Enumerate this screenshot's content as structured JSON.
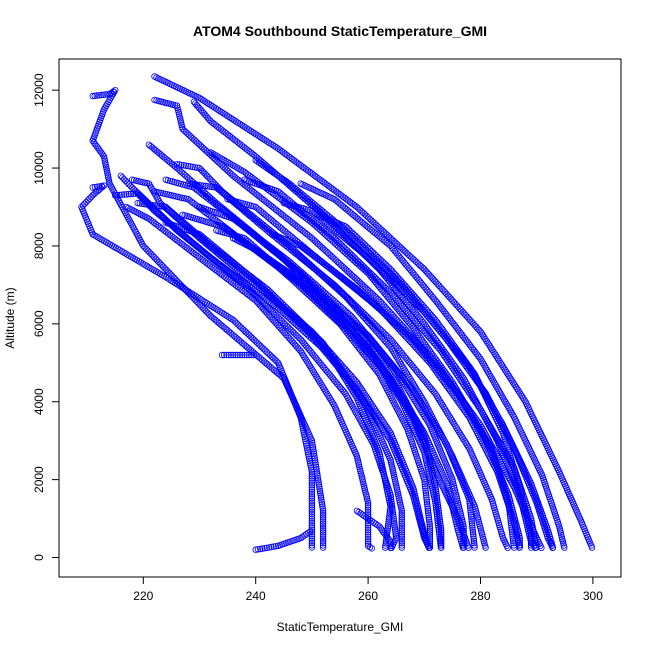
{
  "chart_data": {
    "type": "scatter",
    "title": "ATOM4 Southbound StaticTemperature_GMI",
    "xlabel": "StaticTemperature_GMI",
    "ylabel": "Altitude (m)",
    "xlim": [
      205,
      305
    ],
    "ylim": [
      -500,
      12800
    ],
    "xticks": [
      220,
      240,
      260,
      280,
      300
    ],
    "yticks": [
      0,
      2000,
      4000,
      6000,
      8000,
      10000,
      12000
    ],
    "grid": false,
    "legend": "none",
    "marker": "open-circle",
    "color": "#0000ff",
    "profiles": [
      [
        [
          211,
          11850
        ],
        [
          214,
          11900
        ],
        [
          215,
          12000
        ],
        [
          213,
          11500
        ],
        [
          211,
          10700
        ],
        [
          213,
          10300
        ],
        [
          214,
          9600
        ],
        [
          220,
          8000
        ],
        [
          232,
          6200
        ],
        [
          245,
          4600
        ],
        [
          250,
          3000
        ],
        [
          252,
          1200
        ],
        [
          252,
          200
        ]
      ],
      [
        [
          211,
          9500
        ],
        [
          213,
          9550
        ],
        [
          211,
          9300
        ],
        [
          209,
          9000
        ],
        [
          211,
          8300
        ],
        [
          224,
          7200
        ],
        [
          236,
          6100
        ],
        [
          244,
          5000
        ],
        [
          248,
          3600
        ],
        [
          250,
          2200
        ],
        [
          250,
          1000
        ],
        [
          250,
          200
        ]
      ],
      [
        [
          222,
          12350
        ],
        [
          230,
          11800
        ],
        [
          244,
          10500
        ],
        [
          258,
          9000
        ],
        [
          270,
          7400
        ],
        [
          280,
          5800
        ],
        [
          288,
          4000
        ],
        [
          294,
          2200
        ],
        [
          298,
          900
        ],
        [
          300,
          200
        ]
      ],
      [
        [
          222,
          11750
        ],
        [
          226,
          11600
        ],
        [
          227,
          11000
        ],
        [
          236,
          9800
        ],
        [
          250,
          8200
        ],
        [
          262,
          6600
        ],
        [
          272,
          5000
        ],
        [
          280,
          3400
        ],
        [
          286,
          1800
        ],
        [
          290,
          500
        ],
        [
          291,
          200
        ]
      ],
      [
        [
          229,
          11700
        ],
        [
          232,
          11200
        ],
        [
          240,
          10300
        ],
        [
          252,
          8800
        ],
        [
          262,
          7400
        ],
        [
          270,
          6000
        ],
        [
          277,
          4600
        ],
        [
          283,
          3000
        ],
        [
          287,
          1600
        ],
        [
          289,
          400
        ],
        [
          290,
          200
        ]
      ],
      [
        [
          221,
          10600
        ],
        [
          226,
          10000
        ],
        [
          233,
          9100
        ],
        [
          244,
          7800
        ],
        [
          254,
          6400
        ],
        [
          262,
          5000
        ],
        [
          268,
          3600
        ],
        [
          272,
          2200
        ],
        [
          276,
          1000
        ],
        [
          278,
          200
        ]
      ],
      [
        [
          218,
          9700
        ],
        [
          221,
          9600
        ],
        [
          223,
          9100
        ],
        [
          230,
          8200
        ],
        [
          240,
          7000
        ],
        [
          250,
          5800
        ],
        [
          258,
          4500
        ],
        [
          264,
          3200
        ],
        [
          268,
          1800
        ],
        [
          270,
          600
        ],
        [
          271,
          200
        ]
      ],
      [
        [
          215,
          9300
        ],
        [
          219,
          9350
        ],
        [
          222,
          8900
        ],
        [
          232,
          7700
        ],
        [
          244,
          6400
        ],
        [
          254,
          5100
        ],
        [
          260,
          3800
        ],
        [
          264,
          2500
        ],
        [
          266,
          1200
        ],
        [
          266,
          200
        ]
      ],
      [
        [
          226,
          10100
        ],
        [
          230,
          10000
        ],
        [
          234,
          9400
        ],
        [
          246,
          8000
        ],
        [
          256,
          6700
        ],
        [
          264,
          5400
        ],
        [
          270,
          4000
        ],
        [
          275,
          2600
        ],
        [
          279,
          1300
        ],
        [
          281,
          200
        ]
      ],
      [
        [
          222,
          9400
        ],
        [
          228,
          9200
        ],
        [
          238,
          8100
        ],
        [
          250,
          6800
        ],
        [
          260,
          5400
        ],
        [
          266,
          4000
        ],
        [
          270,
          2700
        ],
        [
          272,
          1400
        ],
        [
          273,
          200
        ]
      ],
      [
        [
          216,
          9800
        ],
        [
          218,
          9500
        ],
        [
          226,
          8400
        ],
        [
          238,
          7000
        ],
        [
          248,
          5600
        ],
        [
          256,
          4200
        ],
        [
          261,
          2900
        ],
        [
          264,
          1600
        ],
        [
          265,
          500
        ],
        [
          264,
          200
        ]
      ],
      [
        [
          232,
          10400
        ],
        [
          238,
          9900
        ],
        [
          250,
          8600
        ],
        [
          260,
          7300
        ],
        [
          268,
          5900
        ],
        [
          275,
          4500
        ],
        [
          281,
          3000
        ],
        [
          285,
          1600
        ],
        [
          287,
          500
        ],
        [
          287,
          200
        ]
      ],
      [
        [
          219,
          9100
        ],
        [
          224,
          9000
        ],
        [
          232,
          8000
        ],
        [
          242,
          6900
        ],
        [
          252,
          5500
        ],
        [
          258,
          4100
        ],
        [
          262,
          2700
        ],
        [
          264,
          1300
        ],
        [
          263,
          200
        ]
      ],
      [
        [
          228,
          9600
        ],
        [
          233,
          9500
        ],
        [
          242,
          8400
        ],
        [
          254,
          7000
        ],
        [
          264,
          5600
        ],
        [
          272,
          4200
        ],
        [
          278,
          2800
        ],
        [
          282,
          1500
        ],
        [
          284,
          500
        ],
        [
          285,
          200
        ]
      ],
      [
        [
          240,
          10200
        ],
        [
          246,
          9600
        ],
        [
          256,
          8400
        ],
        [
          266,
          7000
        ],
        [
          274,
          5600
        ],
        [
          281,
          4200
        ],
        [
          286,
          2800
        ],
        [
          290,
          1400
        ],
        [
          292,
          500
        ],
        [
          293,
          200
        ]
      ],
      [
        [
          243,
          8300
        ],
        [
          248,
          8000
        ],
        [
          258,
          6900
        ],
        [
          268,
          5600
        ],
        [
          276,
          4200
        ],
        [
          282,
          2800
        ],
        [
          285,
          1400
        ],
        [
          286,
          200
        ]
      ],
      [
        [
          236,
          8200
        ],
        [
          240,
          7900
        ],
        [
          250,
          6900
        ],
        [
          260,
          5700
        ],
        [
          268,
          4300
        ],
        [
          274,
          2900
        ],
        [
          278,
          1500
        ],
        [
          279,
          200
        ]
      ],
      [
        [
          224,
          8600
        ],
        [
          230,
          8300
        ],
        [
          240,
          7100
        ],
        [
          250,
          5700
        ],
        [
          258,
          4300
        ],
        [
          264,
          3000
        ],
        [
          268,
          1600
        ],
        [
          270,
          500
        ],
        [
          271,
          200
        ]
      ],
      [
        [
          235,
          9200
        ],
        [
          240,
          9000
        ],
        [
          250,
          7800
        ],
        [
          262,
          6400
        ],
        [
          271,
          5000
        ],
        [
          278,
          3600
        ],
        [
          283,
          2200
        ],
        [
          286,
          900
        ],
        [
          287,
          200
        ]
      ],
      [
        [
          238,
          9700
        ],
        [
          244,
          9400
        ],
        [
          254,
          8200
        ],
        [
          264,
          6800
        ],
        [
          273,
          5300
        ],
        [
          280,
          3800
        ],
        [
          286,
          2300
        ],
        [
          289,
          1000
        ],
        [
          290,
          200
        ]
      ],
      [
        [
          227,
          8800
        ],
        [
          234,
          8500
        ],
        [
          246,
          7300
        ],
        [
          256,
          5900
        ],
        [
          264,
          4600
        ],
        [
          270,
          3200
        ],
        [
          274,
          1900
        ],
        [
          276,
          700
        ],
        [
          277,
          200
        ]
      ],
      [
        [
          245,
          9100
        ],
        [
          250,
          8900
        ],
        [
          260,
          7700
        ],
        [
          270,
          6300
        ],
        [
          278,
          4900
        ],
        [
          284,
          3400
        ],
        [
          289,
          1900
        ],
        [
          292,
          700
        ],
        [
          293,
          200
        ]
      ],
      [
        [
          248,
          9600
        ],
        [
          254,
          9200
        ],
        [
          264,
          8000
        ],
        [
          272,
          6600
        ],
        [
          280,
          5100
        ],
        [
          286,
          3600
        ],
        [
          291,
          2100
        ],
        [
          294,
          800
        ],
        [
          295,
          200
        ]
      ],
      [
        [
          230,
          9000
        ],
        [
          236,
          8700
        ],
        [
          246,
          7600
        ],
        [
          257,
          6200
        ],
        [
          265,
          4800
        ],
        [
          271,
          3400
        ],
        [
          275,
          2000
        ],
        [
          277,
          800
        ],
        [
          277,
          200
        ]
      ],
      [
        [
          233,
          8400
        ],
        [
          238,
          8200
        ],
        [
          246,
          7200
        ],
        [
          255,
          6000
        ],
        [
          262,
          4700
        ],
        [
          267,
          3300
        ],
        [
          270,
          2000
        ],
        [
          271,
          800
        ],
        [
          271,
          200
        ]
      ],
      [
        [
          217,
          9000
        ],
        [
          221,
          8700
        ],
        [
          230,
          7700
        ],
        [
          240,
          6600
        ],
        [
          248,
          5300
        ],
        [
          254,
          3900
        ],
        [
          258,
          2600
        ],
        [
          260,
          1400
        ],
        [
          260,
          300
        ],
        [
          261,
          200
        ]
      ],
      [
        [
          224,
          9700
        ],
        [
          229,
          9500
        ],
        [
          237,
          8600
        ],
        [
          248,
          7300
        ],
        [
          258,
          5900
        ],
        [
          265,
          4500
        ],
        [
          270,
          3100
        ],
        [
          272,
          1800
        ],
        [
          273,
          700
        ],
        [
          273,
          200
        ]
      ],
      [
        [
          251,
          8800
        ],
        [
          256,
          8500
        ],
        [
          264,
          7400
        ],
        [
          272,
          6100
        ],
        [
          279,
          4700
        ],
        [
          284,
          3200
        ],
        [
          287,
          1800
        ],
        [
          289,
          600
        ],
        [
          289,
          200
        ]
      ],
      [
        [
          234,
          5200
        ],
        [
          240,
          5200
        ]
      ],
      [
        [
          240,
          200
        ],
        [
          244,
          300
        ],
        [
          248,
          500
        ],
        [
          250,
          700
        ]
      ],
      [
        [
          258,
          1200
        ],
        [
          262,
          800
        ],
        [
          264,
          400
        ],
        [
          264,
          200
        ]
      ]
    ]
  }
}
